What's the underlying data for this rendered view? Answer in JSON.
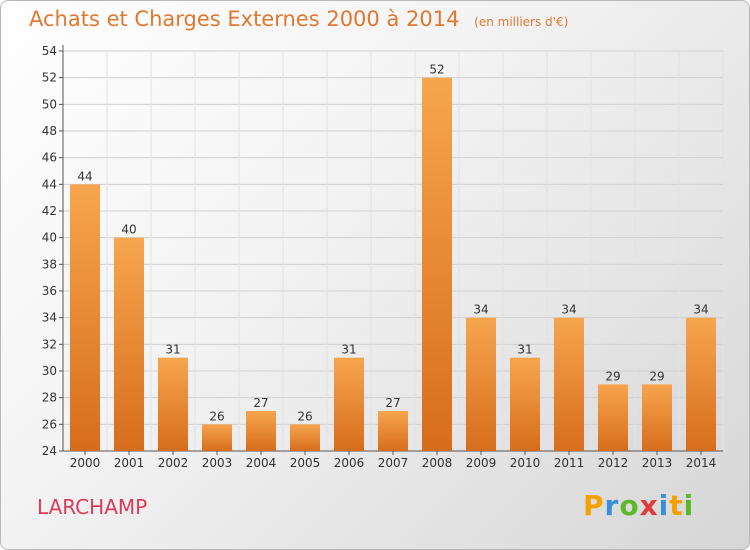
{
  "header": {
    "title": "Achats et Charges Externes 2000 à 2014",
    "subtitle": "(en milliers d'€)"
  },
  "footer": {
    "location": "LARCHAMP",
    "logo_text": "Proxiti"
  },
  "colors": {
    "bar_light": "#f7a54f",
    "bar_dark": "#d66d1c",
    "title": "#e0782f",
    "location": "#dd3a5a"
  },
  "chart_data": {
    "type": "bar",
    "title": "Achats et Charges Externes 2000 à 2014",
    "subtitle": "(en milliers d'€)",
    "xlabel": "",
    "ylabel": "",
    "categories": [
      "2000",
      "2001",
      "2002",
      "2003",
      "2004",
      "2005",
      "2006",
      "2007",
      "2008",
      "2009",
      "2010",
      "2011",
      "2012",
      "2013",
      "2014"
    ],
    "values": [
      44,
      40,
      31,
      26,
      27,
      26,
      31,
      27,
      52,
      34,
      31,
      34,
      29,
      29,
      34
    ],
    "ylim": [
      24,
      54
    ],
    "yticks": [
      24,
      26,
      28,
      30,
      32,
      34,
      36,
      38,
      40,
      42,
      44,
      46,
      48,
      50,
      52,
      54
    ],
    "grid": true,
    "data_labels": true,
    "legend": "none"
  }
}
